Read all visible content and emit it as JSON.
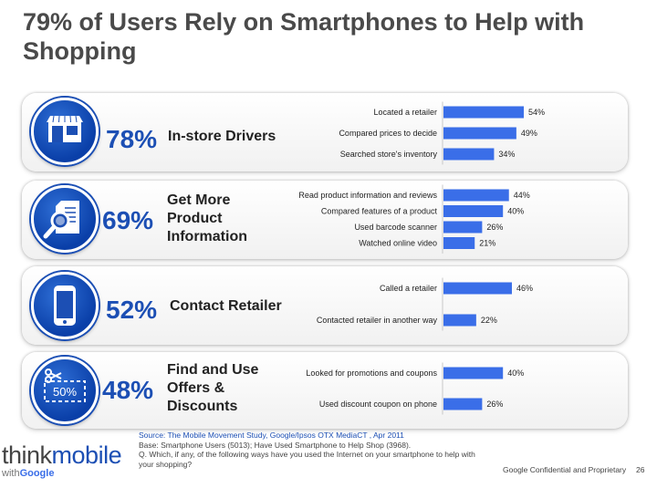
{
  "title": "79% of Users Rely on Smartphones to Help with Shopping",
  "colors": {
    "bar": "#3a6ee8",
    "accent": "#1c4fb4"
  },
  "panels": [
    {
      "icon": "storefront-icon",
      "percent": "78%",
      "label": "In-store Drivers"
    },
    {
      "icon": "magnifier-document-icon",
      "percent": "69%",
      "label": "Get More Product Information"
    },
    {
      "icon": "smartphone-icon",
      "percent": "52%",
      "label": "Contact Retailer"
    },
    {
      "icon": "coupon-scissors-icon",
      "icon_text": "50%",
      "percent": "48%",
      "label": "Find and Use Offers & Discounts"
    }
  ],
  "chart_data": [
    {
      "type": "bar",
      "orientation": "horizontal",
      "xlim": [
        0,
        100
      ],
      "categories": [
        "Located a retailer",
        "Compared prices to decide",
        "Searched store's inventory"
      ],
      "values": [
        54,
        49,
        34
      ],
      "value_labels": [
        "54%",
        "49%",
        "34%"
      ]
    },
    {
      "type": "bar",
      "orientation": "horizontal",
      "xlim": [
        0,
        100
      ],
      "categories": [
        "Read product information and reviews",
        "Compared features of a product",
        "Used barcode scanner",
        "Watched online video"
      ],
      "values": [
        44,
        40,
        26,
        21
      ],
      "value_labels": [
        "44%",
        "40%",
        "26%",
        "21%"
      ]
    },
    {
      "type": "bar",
      "orientation": "horizontal",
      "xlim": [
        0,
        100
      ],
      "categories": [
        "Called a retailer",
        "Contacted retailer in another way"
      ],
      "values": [
        46,
        22
      ],
      "value_labels": [
        "46%",
        "22%"
      ]
    },
    {
      "type": "bar",
      "orientation": "horizontal",
      "xlim": [
        0,
        100
      ],
      "categories": [
        "Looked for promotions and coupons",
        "Used discount coupon on phone"
      ],
      "values": [
        40,
        26
      ],
      "value_labels": [
        "40%",
        "26%"
      ]
    }
  ],
  "footer": {
    "source": "Source: The Mobile Movement Study, Google/Ipsos OTX MediaCT , Apr 2011",
    "base": "Base:   Smartphone Users (5013); Have Used Smartphone to Help Shop  (3968).",
    "question": "Q. Which, if any, of the following ways have you used the Internet on your smartphone to help with your shopping?",
    "confidential": "Google Confidential and Proprietary",
    "page_number": "26"
  },
  "logo": {
    "think": "think",
    "mobile": "mobile",
    "with": "with",
    "google": "Google"
  }
}
